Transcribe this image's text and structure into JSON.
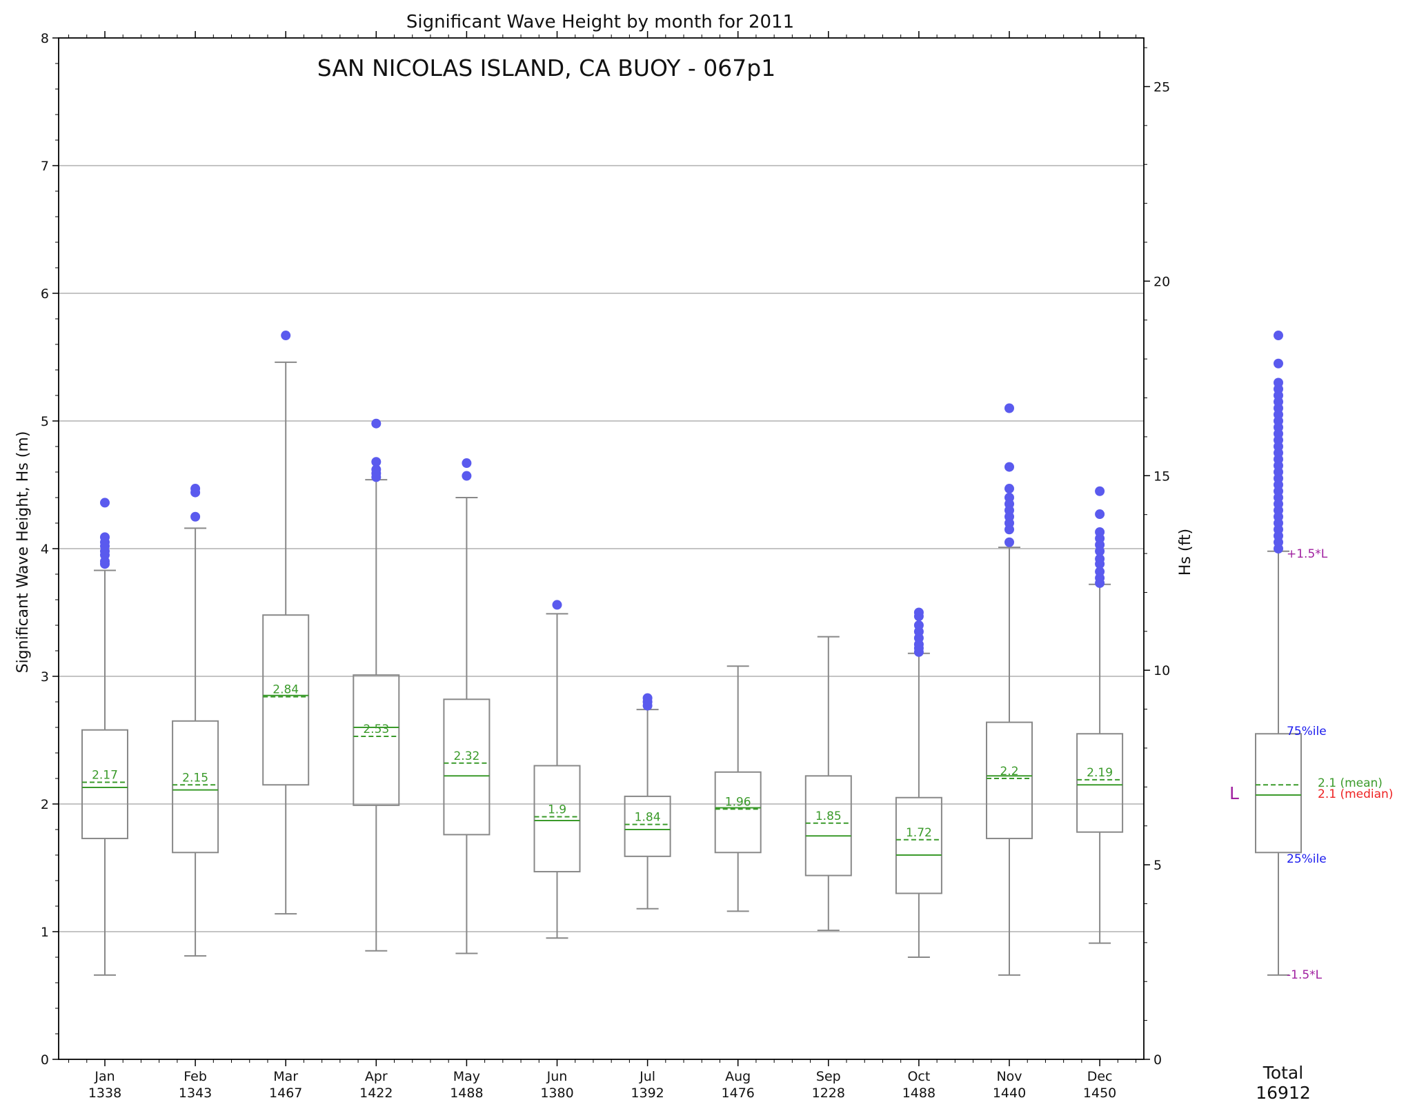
{
  "chart_data": {
    "type": "box",
    "title": "Significant Wave Height by month for 2011",
    "subtitle": "SAN NICOLAS ISLAND, CA BUOY - 067p1",
    "ylabel": "Significant Wave Height, Hs (m)",
    "ylabel_right": "Hs (ft)",
    "ylim": [
      0,
      8
    ],
    "yticks": [
      0,
      1,
      2,
      3,
      4,
      5,
      6,
      7,
      8
    ],
    "ylim_right": [
      0,
      26.25
    ],
    "yticks_right": [
      0,
      5,
      10,
      15,
      20,
      25
    ],
    "grid": true,
    "colors": {
      "box": "#888888",
      "median": "#3a9a2a",
      "mean": "#3a9a2a",
      "outlier": "#5a5aee",
      "legend_limit": "#a020a0",
      "legend_pct": "#1a1aee",
      "legend_median": "#ee2222"
    },
    "months": [
      {
        "label": "Jan",
        "count": "1338",
        "whisker_low": 0.66,
        "q1": 1.73,
        "median": 2.13,
        "mean": 2.17,
        "mean_label": "2.17",
        "q3": 2.58,
        "whisker_high": 3.83,
        "outliers": [
          3.88,
          3.9,
          3.95,
          3.98,
          4.02,
          4.05,
          4.09,
          4.36
        ]
      },
      {
        "label": "Feb",
        "count": "1343",
        "whisker_low": 0.81,
        "q1": 1.62,
        "median": 2.11,
        "mean": 2.15,
        "mean_label": "2.15",
        "q3": 2.65,
        "whisker_high": 4.16,
        "outliers": [
          4.25,
          4.44,
          4.47
        ]
      },
      {
        "label": "Mar",
        "count": "1467",
        "whisker_low": 1.14,
        "q1": 2.15,
        "median": 2.85,
        "mean": 2.84,
        "mean_label": "2.84",
        "q3": 3.48,
        "whisker_high": 5.46,
        "outliers": [
          5.67
        ]
      },
      {
        "label": "Apr",
        "count": "1422",
        "whisker_low": 0.85,
        "q1": 1.99,
        "median": 2.6,
        "mean": 2.53,
        "mean_label": "2.53",
        "q3": 3.01,
        "whisker_high": 4.54,
        "outliers": [
          4.56,
          4.59,
          4.62,
          4.68,
          4.98
        ]
      },
      {
        "label": "May",
        "count": "1488",
        "whisker_low": 0.83,
        "q1": 1.76,
        "median": 2.22,
        "mean": 2.32,
        "mean_label": "2.32",
        "q3": 2.82,
        "whisker_high": 4.4,
        "outliers": [
          4.57,
          4.67
        ]
      },
      {
        "label": "Jun",
        "count": "1380",
        "whisker_low": 0.95,
        "q1": 1.47,
        "median": 1.87,
        "mean": 1.9,
        "mean_label": "1.9",
        "q3": 2.3,
        "whisker_high": 3.49,
        "outliers": [
          3.56
        ]
      },
      {
        "label": "Jul",
        "count": "1392",
        "whisker_low": 1.18,
        "q1": 1.59,
        "median": 1.8,
        "mean": 1.84,
        "mean_label": "1.84",
        "q3": 2.06,
        "whisker_high": 2.74,
        "outliers": [
          2.77,
          2.8,
          2.83
        ]
      },
      {
        "label": "Aug",
        "count": "1476",
        "whisker_low": 1.16,
        "q1": 1.62,
        "median": 1.97,
        "mean": 1.96,
        "mean_label": "1.96",
        "q3": 2.25,
        "whisker_high": 3.08,
        "outliers": []
      },
      {
        "label": "Sep",
        "count": "1228",
        "whisker_low": 1.01,
        "q1": 1.44,
        "median": 1.75,
        "mean": 1.85,
        "mean_label": "1.85",
        "q3": 2.22,
        "whisker_high": 3.31,
        "outliers": []
      },
      {
        "label": "Oct",
        "count": "1488",
        "whisker_low": 0.8,
        "q1": 1.3,
        "median": 1.6,
        "mean": 1.72,
        "mean_label": "1.72",
        "q3": 2.05,
        "whisker_high": 3.18,
        "outliers": [
          3.19,
          3.22,
          3.25,
          3.3,
          3.35,
          3.4,
          3.47,
          3.5
        ]
      },
      {
        "label": "Nov",
        "count": "1440",
        "whisker_low": 0.66,
        "q1": 1.73,
        "median": 2.22,
        "mean": 2.2,
        "mean_label": "2.2",
        "q3": 2.64,
        "whisker_high": 4.01,
        "outliers": [
          4.05,
          4.15,
          4.2,
          4.25,
          4.3,
          4.35,
          4.4,
          4.47,
          4.64,
          5.1
        ]
      },
      {
        "label": "Dec",
        "count": "1450",
        "whisker_low": 0.91,
        "q1": 1.78,
        "median": 2.15,
        "mean": 2.19,
        "mean_label": "2.19",
        "q3": 2.55,
        "whisker_high": 3.72,
        "outliers": [
          3.73,
          3.77,
          3.82,
          3.88,
          3.92,
          3.98,
          4.03,
          4.08,
          4.13,
          4.27,
          4.45
        ]
      }
    ],
    "total": {
      "label": "Total",
      "count": "16912",
      "whisker_low": 0.66,
      "q1": 1.62,
      "median": 2.07,
      "mean": 2.15,
      "q3": 2.55,
      "whisker_high": 3.98,
      "outliers": [
        4.0,
        4.05,
        4.1,
        4.15,
        4.2,
        4.25,
        4.3,
        4.35,
        4.4,
        4.45,
        4.5,
        4.55,
        4.6,
        4.65,
        4.7,
        4.75,
        4.8,
        4.85,
        4.9,
        4.95,
        5.0,
        5.05,
        5.1,
        5.15,
        5.2,
        5.25,
        5.3,
        5.45,
        5.67
      ],
      "legend": {
        "upper_limit": "+1.5*L",
        "q3": "75%ile",
        "mean": "2.1 (mean)",
        "median": "2.1 (median)",
        "q1": "25%ile",
        "lower_limit": "-1.5*L",
        "iqr": "L"
      }
    }
  }
}
